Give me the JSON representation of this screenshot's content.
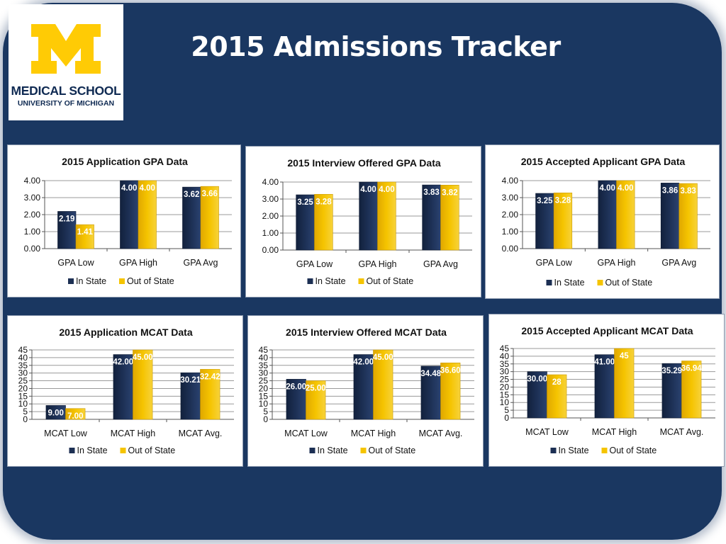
{
  "header": {
    "title": "2015 Admissions Tracker",
    "logo_line1": "MEDICAL SCHOOL",
    "logo_line2": "UNIVERSITY OF MICHIGAN",
    "logo_letter": "M"
  },
  "colors": {
    "background": "#1a3761",
    "in_state": "#1c2f53",
    "out_of_state": "#f5c400",
    "logo_maize": "#ffcb05",
    "logo_blue": "#0f2a52"
  },
  "chart_data": [
    {
      "type": "bar",
      "title": "2015 Application  GPA Data",
      "categories": [
        "GPA Low",
        "GPA High",
        "GPA Avg"
      ],
      "series": [
        {
          "name": "In State",
          "values": [
            2.19,
            4.0,
            3.62
          ],
          "labels": [
            "2.19",
            "4.00",
            "3.62"
          ]
        },
        {
          "name": "Out of State",
          "values": [
            1.41,
            4.0,
            3.66
          ],
          "labels": [
            "1.41",
            "4.00",
            "3.66"
          ]
        }
      ],
      "ylim": [
        0,
        4
      ],
      "yticks": [
        "0.00",
        "1.00",
        "2.00",
        "3.00",
        "4.00"
      ],
      "grid": true,
      "legend": "bottom"
    },
    {
      "type": "bar",
      "title": "2015 Interview Offered GPA Data",
      "categories": [
        "GPA Low",
        "GPA High",
        "GPA Avg"
      ],
      "series": [
        {
          "name": "In State",
          "values": [
            3.25,
            4.0,
            3.83
          ],
          "labels": [
            "3.25",
            "4.00",
            "3.83"
          ]
        },
        {
          "name": "Out of State",
          "values": [
            3.28,
            4.0,
            3.82
          ],
          "labels": [
            "3.28",
            "4.00",
            "3.82"
          ]
        }
      ],
      "ylim": [
        0,
        4
      ],
      "yticks": [
        "0.00",
        "1.00",
        "2.00",
        "3.00",
        "4.00"
      ],
      "grid": true,
      "legend": "bottom"
    },
    {
      "type": "bar",
      "title": "2015 Accepted Applicant  GPA Data",
      "categories": [
        "GPA Low",
        "GPA High",
        "GPA Avg"
      ],
      "series": [
        {
          "name": "In State",
          "values": [
            3.25,
            4.0,
            3.86
          ],
          "labels": [
            "3.25",
            "4.00",
            "3.86"
          ]
        },
        {
          "name": "Out of State",
          "values": [
            3.28,
            4.0,
            3.83
          ],
          "labels": [
            "3.28",
            "4.00",
            "3.83"
          ]
        }
      ],
      "ylim": [
        0,
        4
      ],
      "yticks": [
        "0.00",
        "1.00",
        "2.00",
        "3.00",
        "4.00"
      ],
      "grid": true,
      "legend": "bottom"
    },
    {
      "type": "bar",
      "title": "2015 Application  MCAT Data",
      "categories": [
        "MCAT Low",
        "MCAT High",
        "MCAT Avg."
      ],
      "series": [
        {
          "name": "In State",
          "values": [
            9.0,
            42.0,
            30.21
          ],
          "labels": [
            "9.00",
            "42.00",
            "30.21"
          ]
        },
        {
          "name": "Out of State",
          "values": [
            7.0,
            45.0,
            32.42
          ],
          "labels": [
            "7.00",
            "45.00",
            "32.42"
          ]
        }
      ],
      "ylim": [
        0,
        45
      ],
      "yticks": [
        "0",
        "5",
        "10",
        "15",
        "20",
        "25",
        "30",
        "35",
        "40",
        "45"
      ],
      "grid": true,
      "legend": "bottom"
    },
    {
      "type": "bar",
      "title": "2015 Interview Offered MCAT Data",
      "categories": [
        "MCAT Low",
        "MCAT High",
        "MCAT Avg."
      ],
      "series": [
        {
          "name": "In State",
          "values": [
            26.0,
            42.0,
            34.48
          ],
          "labels": [
            "26.00",
            "42.00",
            "34.48"
          ]
        },
        {
          "name": "Out of State",
          "values": [
            25.0,
            45.0,
            36.6
          ],
          "labels": [
            "25.00",
            "45.00",
            "36.60"
          ]
        }
      ],
      "ylim": [
        0,
        45
      ],
      "yticks": [
        "0",
        "5",
        "10",
        "15",
        "20",
        "25",
        "30",
        "35",
        "40",
        "45"
      ],
      "grid": true,
      "legend": "bottom"
    },
    {
      "type": "bar",
      "title": "2015 Accepted Applicant  MCAT Data",
      "categories": [
        "MCAT Low",
        "MCAT High",
        "MCAT Avg."
      ],
      "series": [
        {
          "name": "In State",
          "values": [
            30.0,
            41.0,
            35.29
          ],
          "labels": [
            "30.00",
            "41.00",
            "35.29"
          ]
        },
        {
          "name": "Out of State",
          "values": [
            28,
            45,
            36.94
          ],
          "labels": [
            "28",
            "45",
            "36.94"
          ]
        }
      ],
      "ylim": [
        0,
        45
      ],
      "yticks": [
        "0",
        "5",
        "10",
        "15",
        "20",
        "25",
        "30",
        "35",
        "40",
        "45"
      ],
      "grid": true,
      "legend": "bottom"
    }
  ]
}
